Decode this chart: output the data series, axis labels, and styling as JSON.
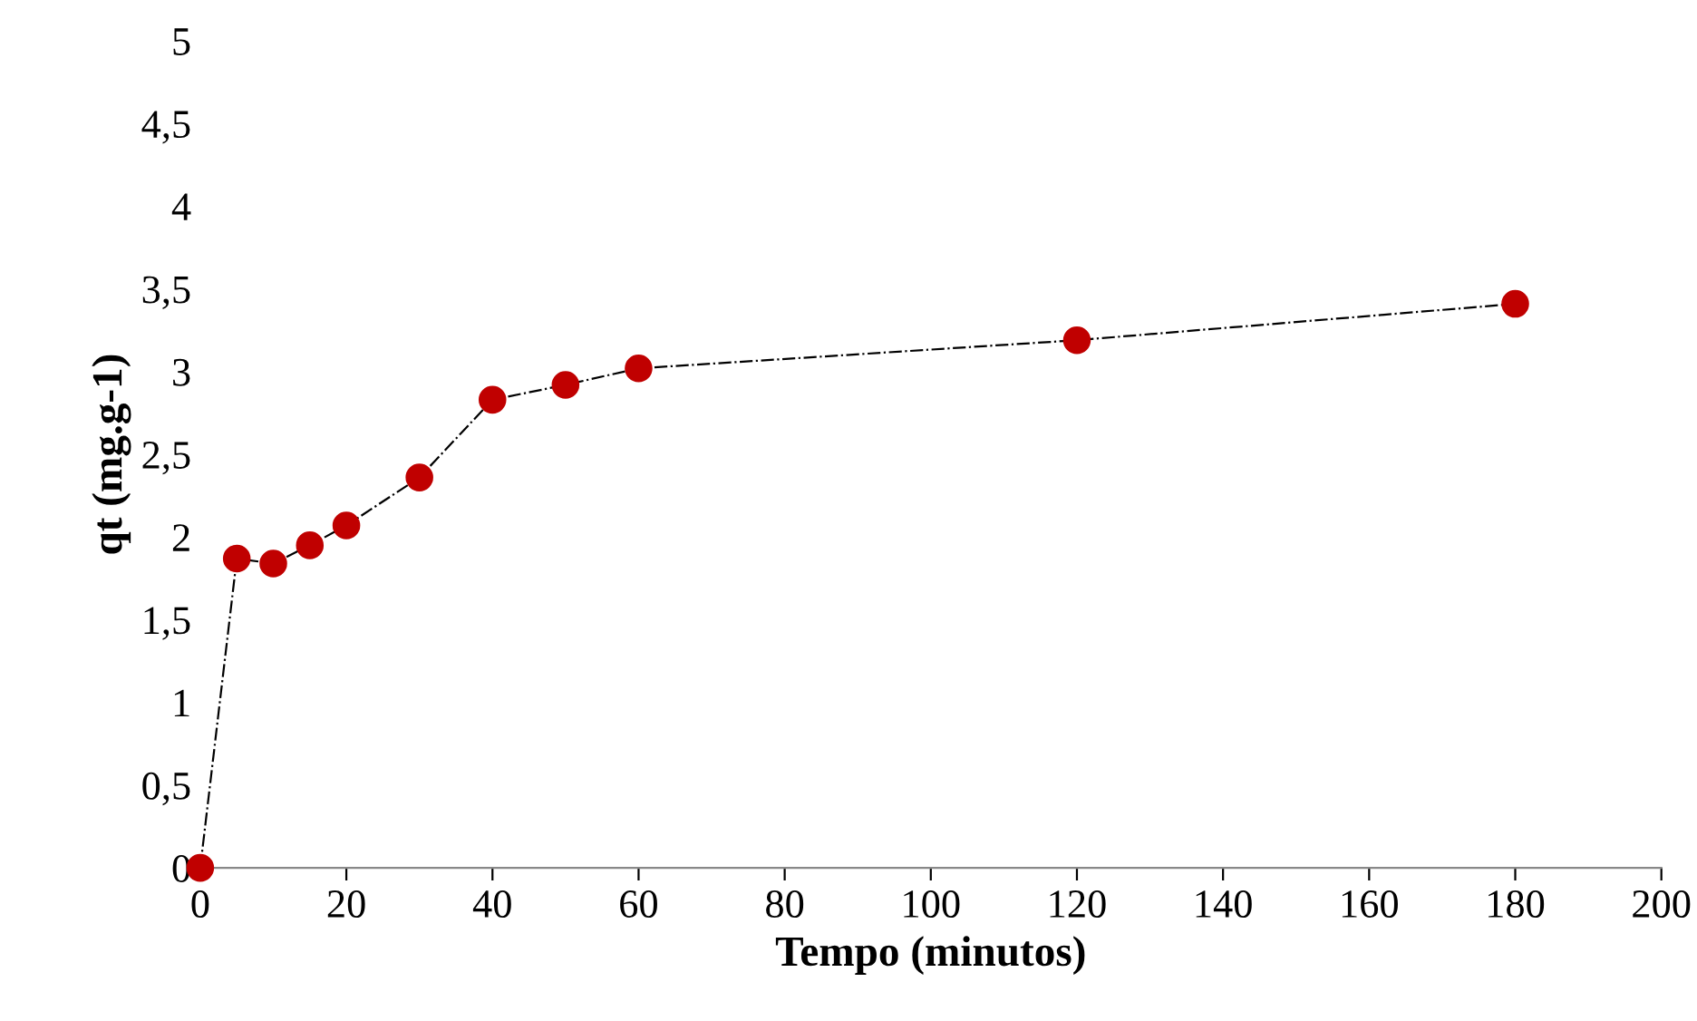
{
  "chart_data": {
    "type": "line",
    "xlabel": "Tempo (minutos)",
    "ylabel": "qt (mg.g-1)",
    "x": [
      0,
      5,
      10,
      15,
      20,
      30,
      40,
      50,
      60,
      120,
      180
    ],
    "series": [
      {
        "color": "#c00000",
        "values": [
          0,
          1.87,
          1.84,
          1.95,
          2.07,
          2.36,
          2.83,
          2.92,
          3.02,
          3.19,
          3.41
        ]
      }
    ],
    "xlim": [
      0,
      200
    ],
    "xticks": [
      0,
      20,
      40,
      60,
      80,
      100,
      120,
      140,
      160,
      180,
      200
    ],
    "ylim": [
      0,
      5
    ],
    "yticks": [
      0,
      {
        "value": 0.5,
        "label": "0,5"
      },
      1,
      {
        "value": 1.5,
        "label": "1,5"
      },
      2,
      {
        "value": 2.5,
        "label": "2,5"
      },
      3,
      {
        "value": 3.5,
        "label": "3,5"
      },
      4,
      {
        "value": 4.5,
        "label": "4,5"
      },
      5
    ],
    "grid": false,
    "legend": false,
    "marker": "circle",
    "line_style": "dashed"
  }
}
